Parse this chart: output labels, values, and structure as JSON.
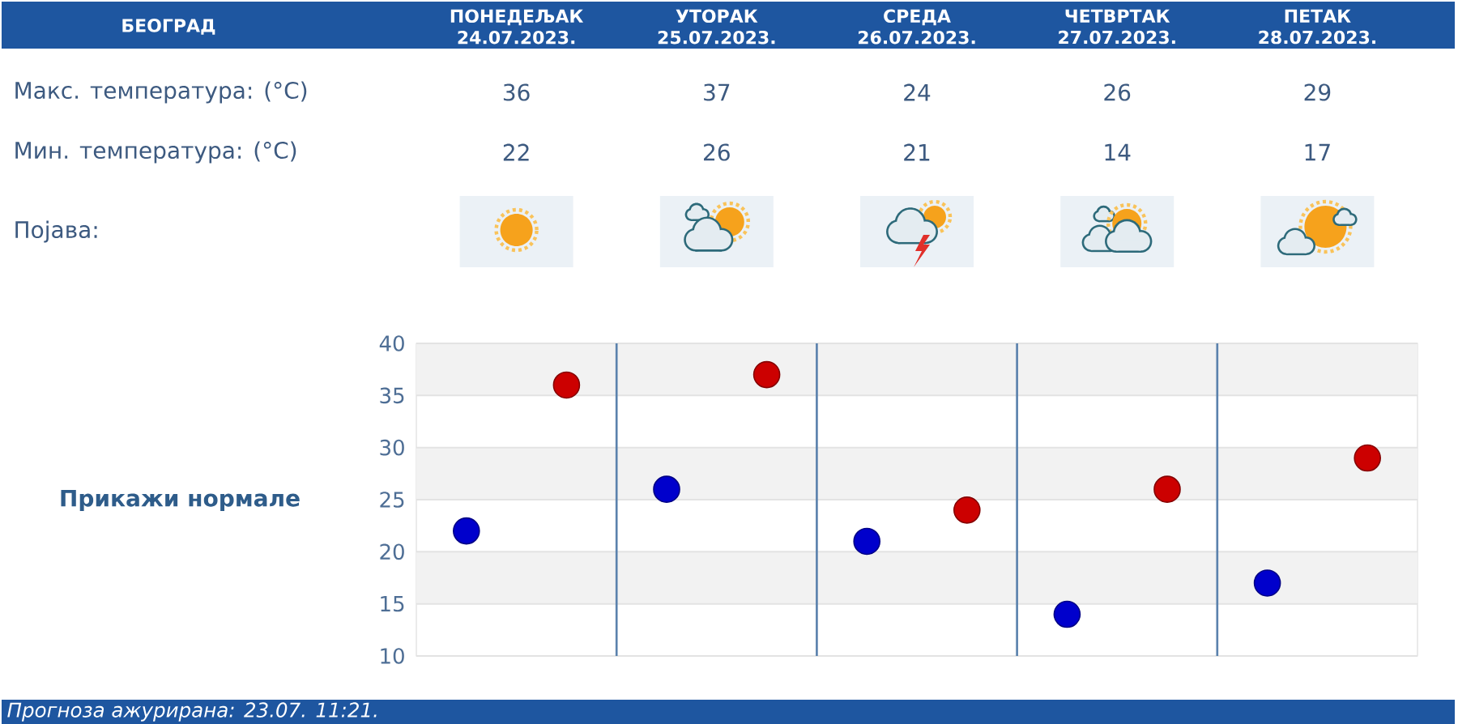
{
  "chart_data": {
    "type": "scatter",
    "title": "БЕОГРАД",
    "categories": [
      null,
      null,
      null,
      null,
      null
    ],
    "series": [
      {
        "color": "#cc0000",
        "values": [
          36,
          37,
          24,
          26,
          29
        ]
      },
      {
        "color": "#0000cc",
        "values": [
          22,
          26,
          21,
          14,
          17
        ]
      }
    ],
    "ylim": [
      10,
      40
    ],
    "yticks": [
      10,
      15,
      20,
      25,
      30,
      35,
      40
    ],
    "grid": true,
    "marker": "circle",
    "data_labels": true,
    "bands": [
      {
        "axis": "y",
        "from": 35,
        "to": 40,
        "color": "#f2f2f2"
      },
      {
        "axis": "y",
        "from": 25,
        "to": 30,
        "color": "#f2f2f2"
      },
      {
        "axis": "y",
        "from": 15,
        "to": 20,
        "color": "#f2f2f2"
      }
    ],
    "annotations": [
      "ПОНЕДЕЉАК 24.07.2023.",
      "УТОРАК 25.07.2023.",
      "СРЕДА 26.07.2023.",
      "ЧЕТВРТАК 27.07.2023.",
      "ПЕТАК 28.07.2023.",
      "Макс. температура: (°C)",
      "Мин. температура: (°C)",
      "Појава:",
      "Прикажи нормале",
      "Прогноза ажурирана:  23.07. 11:21."
    ]
  }
}
